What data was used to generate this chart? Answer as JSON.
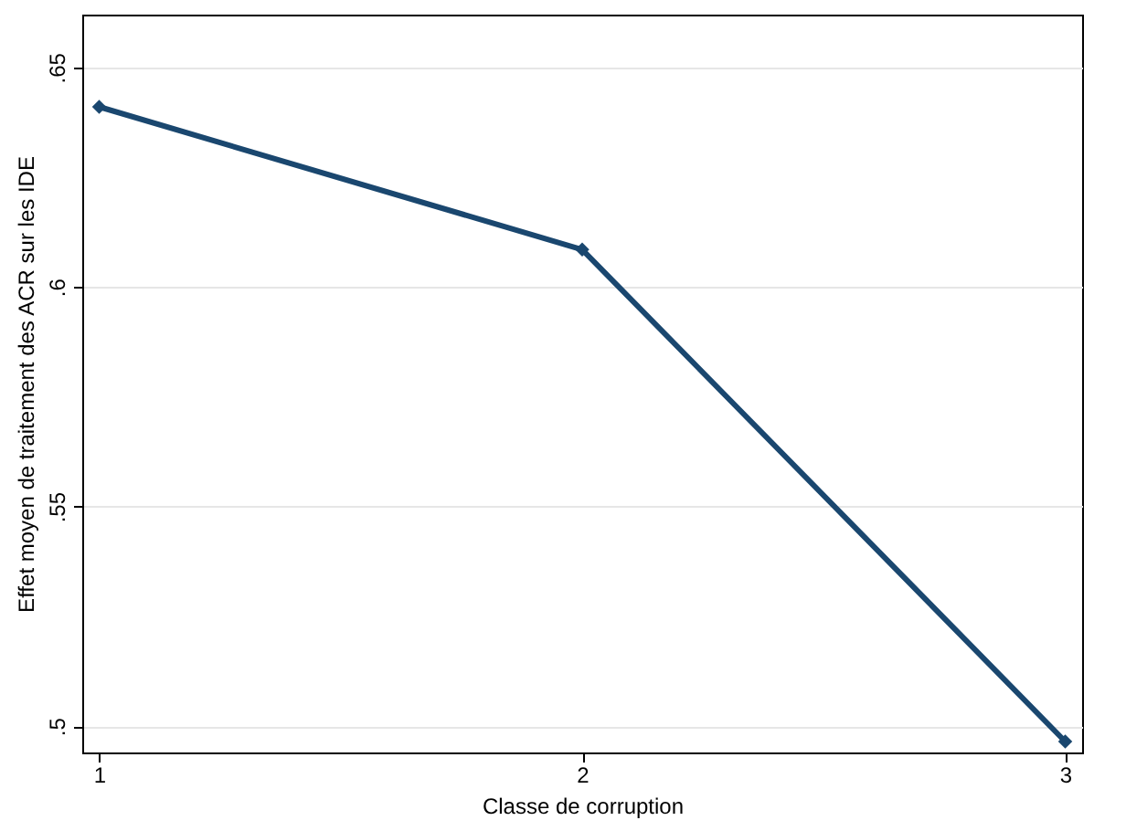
{
  "chart_data": {
    "type": "line",
    "xlabel": "Classe de corruption",
    "ylabel": "Effet moyen de traitement des ACR sur les IDE",
    "x": [
      1,
      2,
      3
    ],
    "series": [
      {
        "color": "#1a476f",
        "values": [
          0.641,
          0.6085,
          0.4965
        ]
      }
    ],
    "xlim": [
      0.965,
      3.035
    ],
    "xticks": [
      1,
      2,
      3
    ],
    "ylim": [
      0.494,
      0.662
    ],
    "yticks": [
      {
        "value": 0.5,
        "label": ".5"
      },
      {
        "value": 0.55,
        "label": ".55"
      },
      {
        "value": 0.6,
        "label": ".6"
      },
      {
        "value": 0.65,
        "label": ".65"
      }
    ],
    "grid": "y",
    "marker": "diamond",
    "line_style": "solid"
  }
}
